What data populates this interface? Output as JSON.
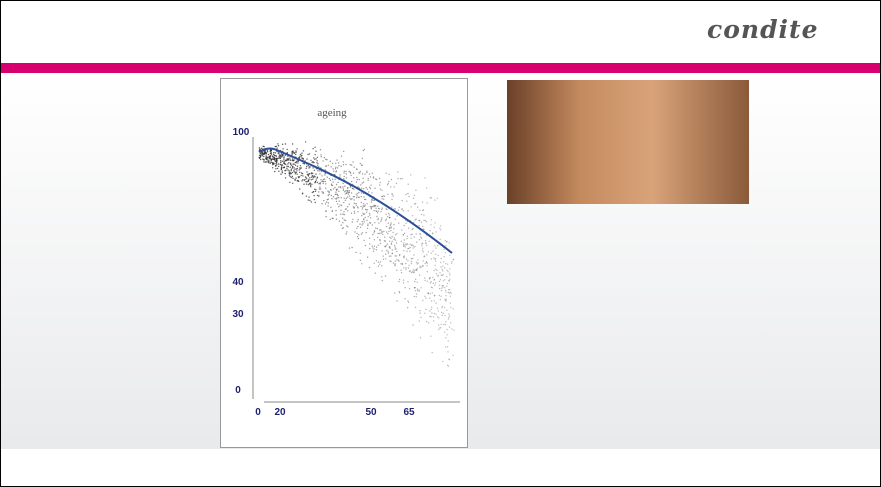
{
  "header": {
    "logo": "condite"
  },
  "chart": {
    "title": "ageing",
    "y_labels": [
      "100",
      "40",
      "30",
      "0"
    ],
    "x_labels": [
      "0",
      "20",
      "50",
      "65"
    ]
  }
}
